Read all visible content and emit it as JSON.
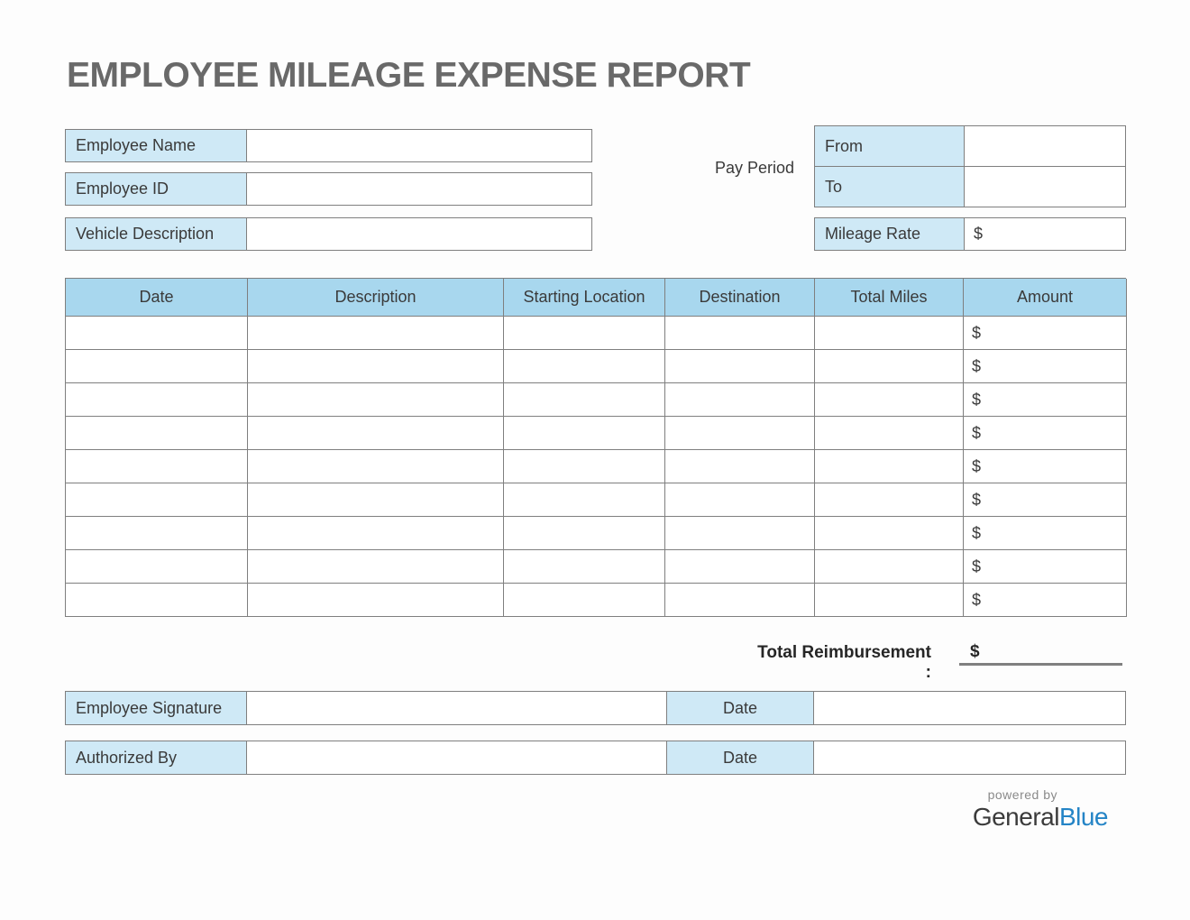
{
  "title": "EMPLOYEE MILEAGE EXPENSE REPORT",
  "form": {
    "employee_name": {
      "label": "Employee Name",
      "value": ""
    },
    "employee_id": {
      "label": "Employee ID",
      "value": ""
    },
    "vehicle_description": {
      "label": "Vehicle Description",
      "value": ""
    }
  },
  "pay_period": {
    "label": "Pay Period",
    "from_label": "From",
    "from_value": "",
    "to_label": "To",
    "to_value": "",
    "mileage_rate_label": "Mileage Rate",
    "mileage_rate_prefix": "$",
    "mileage_rate_value": ""
  },
  "table": {
    "headers": [
      "Date",
      "Description",
      "Starting Location",
      "Destination",
      "Total Miles",
      "Amount"
    ],
    "amount_prefix": "$",
    "rows": [
      {
        "date": "",
        "description": "",
        "starting_location": "",
        "destination": "",
        "total_miles": "",
        "amount_prefix": "$",
        "amount": ""
      },
      {
        "date": "",
        "description": "",
        "starting_location": "",
        "destination": "",
        "total_miles": "",
        "amount_prefix": "$",
        "amount": ""
      },
      {
        "date": "",
        "description": "",
        "starting_location": "",
        "destination": "",
        "total_miles": "",
        "amount_prefix": "$",
        "amount": ""
      },
      {
        "date": "",
        "description": "",
        "starting_location": "",
        "destination": "",
        "total_miles": "",
        "amount_prefix": "$",
        "amount": ""
      },
      {
        "date": "",
        "description": "",
        "starting_location": "",
        "destination": "",
        "total_miles": "",
        "amount_prefix": "$",
        "amount": ""
      },
      {
        "date": "",
        "description": "",
        "starting_location": "",
        "destination": "",
        "total_miles": "",
        "amount_prefix": "$",
        "amount": ""
      },
      {
        "date": "",
        "description": "",
        "starting_location": "",
        "destination": "",
        "total_miles": "",
        "amount_prefix": "$",
        "amount": ""
      },
      {
        "date": "",
        "description": "",
        "starting_location": "",
        "destination": "",
        "total_miles": "",
        "amount_prefix": "$",
        "amount": ""
      },
      {
        "date": "",
        "description": "",
        "starting_location": "",
        "destination": "",
        "total_miles": "",
        "amount_prefix": "$",
        "amount": ""
      }
    ]
  },
  "total": {
    "label": "Total Reimbursement :",
    "prefix": "$",
    "value": ""
  },
  "signatures": [
    {
      "label": "Employee Signature",
      "value": "",
      "date_label": "Date",
      "date_value": ""
    },
    {
      "label": "Authorized By",
      "value": "",
      "date_label": "Date",
      "date_value": ""
    }
  ],
  "footer": {
    "powered_by": "powered by",
    "brand_part_dark": "General",
    "brand_part_blue": "Blue"
  },
  "colors": {
    "label_blue": "#cfe9f6",
    "header_blue": "#a8d7ee",
    "border_gray": "#7f7f7f",
    "title_gray": "#696969",
    "brand_blue": "#2484c6"
  }
}
